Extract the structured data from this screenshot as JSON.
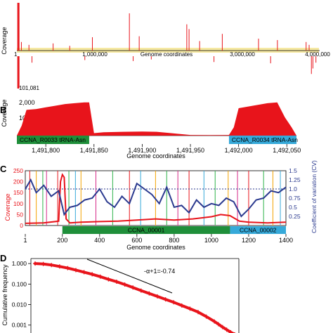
{
  "colors": {
    "coverage": "#e8141b",
    "cv": "#2b3a8f",
    "gene_green": "#1f8f3a",
    "gene_blue": "#36a9d9",
    "axis": "#000000",
    "highlight": "#f6e9a3"
  },
  "chart_data": [
    {
      "panel": "A",
      "type": "bar",
      "ylabel": "Coverage",
      "xlabel": "Genome coordinates",
      "xticks": [
        "1",
        "1,000,000",
        "3,000,000",
        "4,000,000"
      ],
      "xlim": [
        1,
        4000000
      ],
      "annotation": "101,081",
      "forward_peaks": [
        {
          "x": 20000,
          "y": 1.0
        },
        {
          "x": 60000,
          "y": 0.18
        },
        {
          "x": 160000,
          "y": 0.12
        },
        {
          "x": 480000,
          "y": 0.15
        },
        {
          "x": 700000,
          "y": 0.1
        },
        {
          "x": 1000000,
          "y": 0.28
        },
        {
          "x": 1490000,
          "y": 0.78
        },
        {
          "x": 1620000,
          "y": 0.3
        },
        {
          "x": 2250000,
          "y": 0.55
        },
        {
          "x": 2280000,
          "y": 0.45
        },
        {
          "x": 2420000,
          "y": 0.2
        },
        {
          "x": 2720000,
          "y": 0.35
        },
        {
          "x": 3200000,
          "y": 0.25
        },
        {
          "x": 3450000,
          "y": 0.22
        },
        {
          "x": 3830000,
          "y": 0.18
        },
        {
          "x": 3870000,
          "y": 0.12
        }
      ],
      "reverse_peaks": [
        {
          "x": 20000,
          "y": 1.0
        },
        {
          "x": 200000,
          "y": 0.2
        },
        {
          "x": 900000,
          "y": 0.12
        },
        {
          "x": 1540000,
          "y": 0.15
        },
        {
          "x": 1780000,
          "y": 0.1
        },
        {
          "x": 2610000,
          "y": 0.18
        },
        {
          "x": 3360000,
          "y": 0.22
        },
        {
          "x": 3900000,
          "y": 0.55
        },
        {
          "x": 3920000,
          "y": 0.38
        },
        {
          "x": 3960000,
          "y": 0.2
        }
      ]
    },
    {
      "panel": "B",
      "type": "area",
      "ylabel": "Coverage",
      "xlabel": "Genome coordinates",
      "yticks": [
        "2,000",
        "1000"
      ],
      "ylim": [
        0,
        2200
      ],
      "xlim": [
        1491770,
        1492060
      ],
      "xticks": [
        "1,491,800",
        "1,491,850",
        "1,491,900",
        "1,491,950",
        "1,492,000",
        "1,492,050"
      ],
      "x": [
        1491770,
        1491775,
        1491780,
        1491790,
        1491800,
        1491810,
        1491820,
        1491830,
        1491840,
        1491845,
        1491850,
        1491860,
        1491880,
        1491900,
        1491915,
        1491930,
        1491950,
        1491970,
        1491990,
        1491995,
        1492000,
        1492010,
        1492020,
        1492030,
        1492040,
        1492048,
        1492055,
        1492060
      ],
      "y": [
        0,
        600,
        1550,
        1600,
        1700,
        1800,
        1900,
        1950,
        2000,
        2000,
        150,
        200,
        230,
        240,
        230,
        150,
        40,
        30,
        40,
        500,
        1650,
        1750,
        1850,
        1950,
        2000,
        1100,
        500,
        0
      ],
      "genes": [
        {
          "label": "CCNA_R0033 tRNA-Asn",
          "start": 1491770,
          "end": 1491845,
          "color": "gene_green"
        },
        {
          "label": "CCNA_R0034 tRNA-Asn",
          "start": 1491990,
          "end": 1492060,
          "color": "gene_blue"
        }
      ]
    },
    {
      "panel": "C",
      "type": "line",
      "ylabel": "Coverage",
      "y2label": "Coefficient of variation (CV)",
      "xlabel": "Genome coordinates",
      "yticks": [
        "250",
        "200",
        "150",
        "100",
        "50",
        "0"
      ],
      "ylim": [
        0,
        250
      ],
      "y2ticks": [
        "1.5",
        "1.25",
        "1.0",
        "0.75",
        "0.5",
        "0.25"
      ],
      "y2lim": [
        0,
        1.5
      ],
      "xlim": [
        1,
        1400
      ],
      "xticks": [
        "1",
        "200",
        "400",
        "600",
        "800",
        "1000",
        "1200",
        "1400"
      ],
      "cv_reference": 1.0,
      "series": [
        {
          "name": "coverage",
          "x": [
            1,
            100,
            180,
            190,
            200,
            210,
            220,
            240,
            300,
            400,
            500,
            600,
            700,
            800,
            900,
            1000,
            1050,
            1100,
            1150,
            1200,
            1300,
            1400
          ],
          "values": [
            10,
            12,
            20,
            200,
            232,
            220,
            30,
            12,
            15,
            18,
            20,
            25,
            30,
            25,
            30,
            40,
            50,
            45,
            20,
            15,
            12,
            15
          ]
        },
        {
          "name": "cv",
          "x": [
            1,
            30,
            60,
            100,
            140,
            180,
            210,
            240,
            280,
            320,
            360,
            400,
            440,
            480,
            520,
            560,
            600,
            640,
            680,
            720,
            760,
            800,
            840,
            880,
            920,
            960,
            1000,
            1040,
            1080,
            1120,
            1160,
            1200,
            1240,
            1280,
            1320,
            1360,
            1400
          ],
          "values": [
            1.0,
            1.25,
            0.9,
            1.1,
            0.8,
            0.95,
            0.3,
            0.5,
            0.55,
            0.7,
            0.75,
            1.0,
            0.65,
            0.5,
            0.8,
            0.6,
            1.15,
            1.0,
            0.85,
            0.6,
            1.05,
            0.5,
            0.55,
            0.35,
            0.7,
            0.5,
            0.6,
            0.55,
            0.75,
            0.65,
            0.25,
            0.45,
            0.7,
            0.75,
            0.95,
            0.9,
            1.05
          ]
        }
      ],
      "markers": [
        {
          "x": 25,
          "color": "#e8141b"
        },
        {
          "x": 60,
          "color": "#f4a300"
        },
        {
          "x": 95,
          "color": "#2fb34a"
        },
        {
          "x": 115,
          "color": "#d62b8a"
        },
        {
          "x": 175,
          "color": "#e8141b"
        },
        {
          "x": 235,
          "color": "#2fb34a"
        },
        {
          "x": 270,
          "color": "#36a9d9"
        },
        {
          "x": 300,
          "color": "#f4a300"
        },
        {
          "x": 380,
          "color": "#d62b8a"
        },
        {
          "x": 470,
          "color": "#2fb34a"
        },
        {
          "x": 560,
          "color": "#e8141b"
        },
        {
          "x": 620,
          "color": "#36a9d9"
        },
        {
          "x": 700,
          "color": "#f4a300"
        },
        {
          "x": 760,
          "color": "#2fb34a"
        },
        {
          "x": 820,
          "color": "#d62b8a"
        },
        {
          "x": 880,
          "color": "#e8141b"
        },
        {
          "x": 960,
          "color": "#36a9d9"
        },
        {
          "x": 1020,
          "color": "#2fb34a"
        },
        {
          "x": 1090,
          "color": "#f4a300"
        },
        {
          "x": 1140,
          "color": "#d62b8a"
        },
        {
          "x": 1200,
          "color": "#e8141b"
        },
        {
          "x": 1280,
          "color": "#2fb34a"
        },
        {
          "x": 1330,
          "color": "#f4a300"
        },
        {
          "x": 1370,
          "color": "#36a9d9"
        }
      ],
      "genes": [
        {
          "label": "CCNA_00001",
          "start": 200,
          "end": 1100,
          "color": "gene_green"
        },
        {
          "label": "CCNA_00002",
          "start": 1100,
          "end": 1400,
          "color": "gene_blue"
        }
      ]
    },
    {
      "panel": "D",
      "type": "scatter",
      "ylabel": "Cumulative frequency",
      "yticks": [
        "1.000",
        "0.100",
        "0.010",
        "0.001"
      ],
      "ylim": [
        0.0003,
        1.5
      ],
      "log_y": true,
      "annotation": "-α+1=-0.74",
      "x": [
        0.0,
        0.04,
        0.08,
        0.12,
        0.16,
        0.2,
        0.24,
        0.28,
        0.32,
        0.36,
        0.4,
        0.44,
        0.48,
        0.52,
        0.56,
        0.6,
        0.64,
        0.68,
        0.72,
        0.76,
        0.8,
        0.84,
        0.88,
        0.9,
        0.92,
        0.94,
        0.96,
        0.98
      ],
      "values": [
        1.0,
        0.95,
        0.85,
        0.72,
        0.6,
        0.48,
        0.38,
        0.3,
        0.23,
        0.17,
        0.13,
        0.095,
        0.068,
        0.048,
        0.035,
        0.025,
        0.018,
        0.013,
        0.009,
        0.0063,
        0.0043,
        0.0026,
        0.0015,
        0.0011,
        0.0008,
        0.0006,
        0.00045,
        0.00035
      ]
    }
  ],
  "panel_labels": [
    "B",
    "C",
    "D"
  ]
}
